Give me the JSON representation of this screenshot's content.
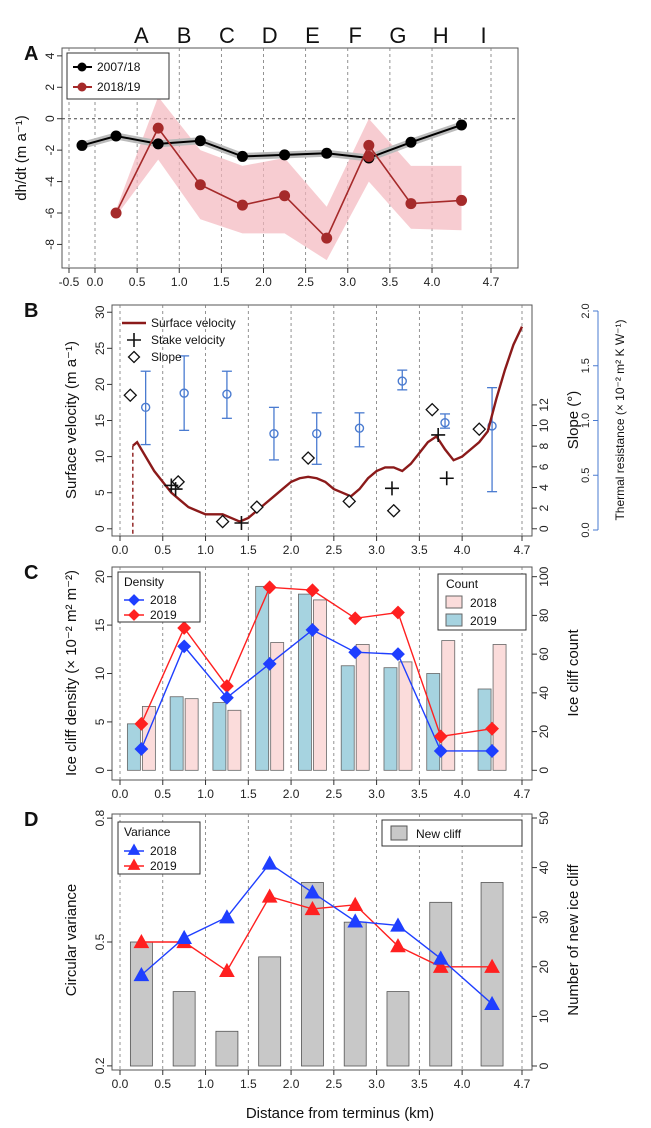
{
  "columns": [
    "A",
    "B",
    "C",
    "D",
    "E",
    "F",
    "G",
    "H",
    "I"
  ],
  "x_ticks_a": [
    "-0.5",
    "0.0",
    "0.5",
    "1.0",
    "1.5",
    "2.0",
    "2.5",
    "3.0",
    "3.5",
    "4.0",
    "4.7"
  ],
  "x_ticks": [
    "0.0",
    "0.5",
    "1.0",
    "1.5",
    "2.0",
    "2.5",
    "3.0",
    "3.5",
    "4.0",
    "4.7"
  ],
  "xlabel": "Distance from terminus (km)",
  "colors": {
    "black": "#000000",
    "darkred": "#a52a2a",
    "ribbon": "#f4b6bd",
    "blue": "#1f3fff",
    "red": "#ff2020",
    "stake_blue": "#4a7bd0",
    "bar_pink": "#fbdcdb",
    "bar_blue": "#a6d3e0",
    "bar_gray": "#c8c8c8",
    "vel": "#8b1a1a"
  },
  "chart_data": [
    {
      "panel": "A",
      "type": "line",
      "ylabel": "dh/dt (m a⁻¹)",
      "ylim": [
        -9.5,
        4.5
      ],
      "y_ticks": [
        "-8",
        "-6",
        "-4",
        "-2",
        "0",
        "2",
        "4"
      ],
      "series": [
        {
          "name": "2007/18",
          "x": [
            -0.25,
            0.25,
            0.75,
            1.25,
            1.75,
            2.25,
            2.75,
            3.25,
            3.75,
            4.35
          ],
          "y": [
            -1.7,
            -1.1,
            -1.6,
            -1.4,
            -2.4,
            -2.3,
            -2.2,
            -2.5,
            -1.5,
            -0.4
          ]
        },
        {
          "name": "2018/19",
          "x": [
            0.25,
            0.75,
            1.25,
            1.75,
            2.25,
            2.75,
            3.25,
            3.75,
            4.35
          ],
          "y": [
            -6.0,
            -0.6,
            -4.2,
            -5.5,
            -4.9,
            -7.6,
            -1.7,
            -5.4,
            -5.2
          ],
          "lower": [
            -6.2,
            -2.6,
            -6.4,
            -7.3,
            -7.3,
            -9.0,
            -4.0,
            -7.0,
            -7.1
          ],
          "upper": [
            -5.8,
            1.4,
            -2.0,
            -3.0,
            -2.5,
            -5.6,
            0.0,
            -3.0,
            -3.0
          ]
        },
        {
          "name": "2018/19 lone",
          "x": [
            3.25
          ],
          "y": [
            -2.4
          ]
        }
      ]
    },
    {
      "panel": "B",
      "type": "line",
      "ylabel": "Surface velocity (m a⁻¹)",
      "ylim": [
        -1,
        31
      ],
      "y_ticks": [
        "0",
        "5",
        "10",
        "15",
        "20",
        "25",
        "30"
      ],
      "ylabel_right": "Slope (°)",
      "slope_ticks": [
        "0",
        "2",
        "4",
        "6",
        "8",
        "10",
        "12"
      ],
      "ylabel_right2": "Thermal resistance (× 10⁻² m² K W⁻¹)",
      "tr_ticks": [
        "0.0",
        "0.5",
        "1.0",
        "1.5",
        "2.0"
      ],
      "legend": [
        "Surface velocity",
        "Stake velocity",
        "Slope"
      ],
      "velocity": {
        "x": [
          0.15,
          0.2,
          0.3,
          0.4,
          0.5,
          0.6,
          0.7,
          0.8,
          0.9,
          1.0,
          1.1,
          1.2,
          1.3,
          1.4,
          1.5,
          1.6,
          1.7,
          1.8,
          1.9,
          2.0,
          2.1,
          2.2,
          2.3,
          2.4,
          2.5,
          2.6,
          2.7,
          2.8,
          2.9,
          3.0,
          3.1,
          3.2,
          3.3,
          3.4,
          3.5,
          3.6,
          3.7,
          3.8,
          3.9,
          4.0,
          4.1,
          4.2,
          4.3,
          4.4,
          4.5,
          4.6,
          4.7
        ],
        "y": [
          11.5,
          12,
          10,
          8,
          6.5,
          5,
          4,
          3,
          2.5,
          2,
          2,
          2,
          1.5,
          1,
          1.5,
          2.5,
          3.5,
          4.5,
          5.5,
          6.5,
          7,
          7.2,
          7,
          6.5,
          5.5,
          5,
          4.5,
          5.5,
          7,
          8,
          8.5,
          8.5,
          8,
          9,
          10.5,
          12,
          12.8,
          11,
          9.5,
          10,
          11,
          12,
          13.5,
          18,
          22,
          25.5,
          28
        ]
      },
      "stake": {
        "x": [
          0.6,
          0.65,
          1.42,
          3.18,
          3.72,
          3.82
        ],
        "y": [
          6.0,
          5.5,
          0.8,
          5.6,
          13.0,
          7.0
        ]
      },
      "slope_pts": {
        "x": [
          0.12,
          0.68,
          1.2,
          1.6,
          2.2,
          2.68,
          3.2,
          3.65,
          4.2
        ],
        "y": [
          18.5,
          6.5,
          1.0,
          3.0,
          9.8,
          3.8,
          2.5,
          16.5,
          13.8
        ]
      },
      "thermal": {
        "x": [
          0.3,
          0.75,
          1.25,
          1.8,
          2.3,
          2.8,
          3.3,
          3.8,
          4.35
        ],
        "y": [
          1.12,
          1.25,
          1.24,
          0.88,
          0.88,
          0.93,
          1.36,
          0.98,
          0.95
        ],
        "lo": [
          0.78,
          0.91,
          1.02,
          0.64,
          0.6,
          0.76,
          1.28,
          0.93,
          0.35
        ],
        "hi": [
          1.45,
          1.59,
          1.45,
          1.12,
          1.07,
          1.07,
          1.46,
          1.06,
          1.3
        ]
      }
    },
    {
      "panel": "C",
      "type": "bar",
      "ylabel": "Ice cliff density (× 10⁻² m² m⁻²)",
      "ylim": [
        -1,
        21
      ],
      "y_ticks": [
        "0",
        "5",
        "10",
        "15",
        "20"
      ],
      "ylabel_right": "Ice cliff count",
      "count_ticks": [
        "0",
        "20",
        "40",
        "60",
        "80",
        "100"
      ],
      "density_title": "Density",
      "count_title": "Count",
      "x": [
        0.25,
        0.75,
        1.25,
        1.75,
        2.25,
        2.75,
        3.25,
        3.75,
        4.35
      ],
      "count_2019": [
        24,
        38,
        35,
        95,
        91,
        54,
        53,
        50,
        42
      ],
      "count_2018": [
        33,
        37,
        31,
        66,
        88,
        65,
        56,
        67,
        65
      ],
      "series": [
        {
          "name": "2018",
          "y": [
            2.2,
            12.8,
            7.5,
            11.0,
            14.5,
            12.2,
            12.0,
            2.0,
            2.0
          ]
        },
        {
          "name": "2019",
          "y": [
            4.8,
            14.7,
            8.7,
            18.9,
            18.6,
            15.7,
            16.3,
            3.5,
            4.3
          ]
        }
      ]
    },
    {
      "panel": "D",
      "type": "bar",
      "ylabel": "Circular variance",
      "ylim": [
        0.19,
        0.81
      ],
      "y_ticks": [
        "0.2",
        "0.5",
        "0.8"
      ],
      "ylabel_right": "Number of new ice cliff",
      "new_ticks": [
        "0",
        "10",
        "20",
        "30",
        "40",
        "50"
      ],
      "variance_title": "Variance",
      "bar_legend": "New cliff",
      "x": [
        0.25,
        0.75,
        1.25,
        1.75,
        2.25,
        2.75,
        3.25,
        3.75,
        4.35
      ],
      "new_cliff": [
        25,
        15,
        7,
        22,
        37,
        29,
        15,
        33,
        37
      ],
      "series": [
        {
          "name": "2018",
          "y": [
            0.42,
            0.51,
            0.56,
            0.69,
            0.62,
            0.55,
            0.54,
            0.46,
            0.35
          ]
        },
        {
          "name": "2019",
          "y": [
            0.5,
            0.5,
            0.43,
            0.61,
            0.58,
            0.59,
            0.49,
            0.44,
            0.44
          ]
        }
      ]
    }
  ]
}
